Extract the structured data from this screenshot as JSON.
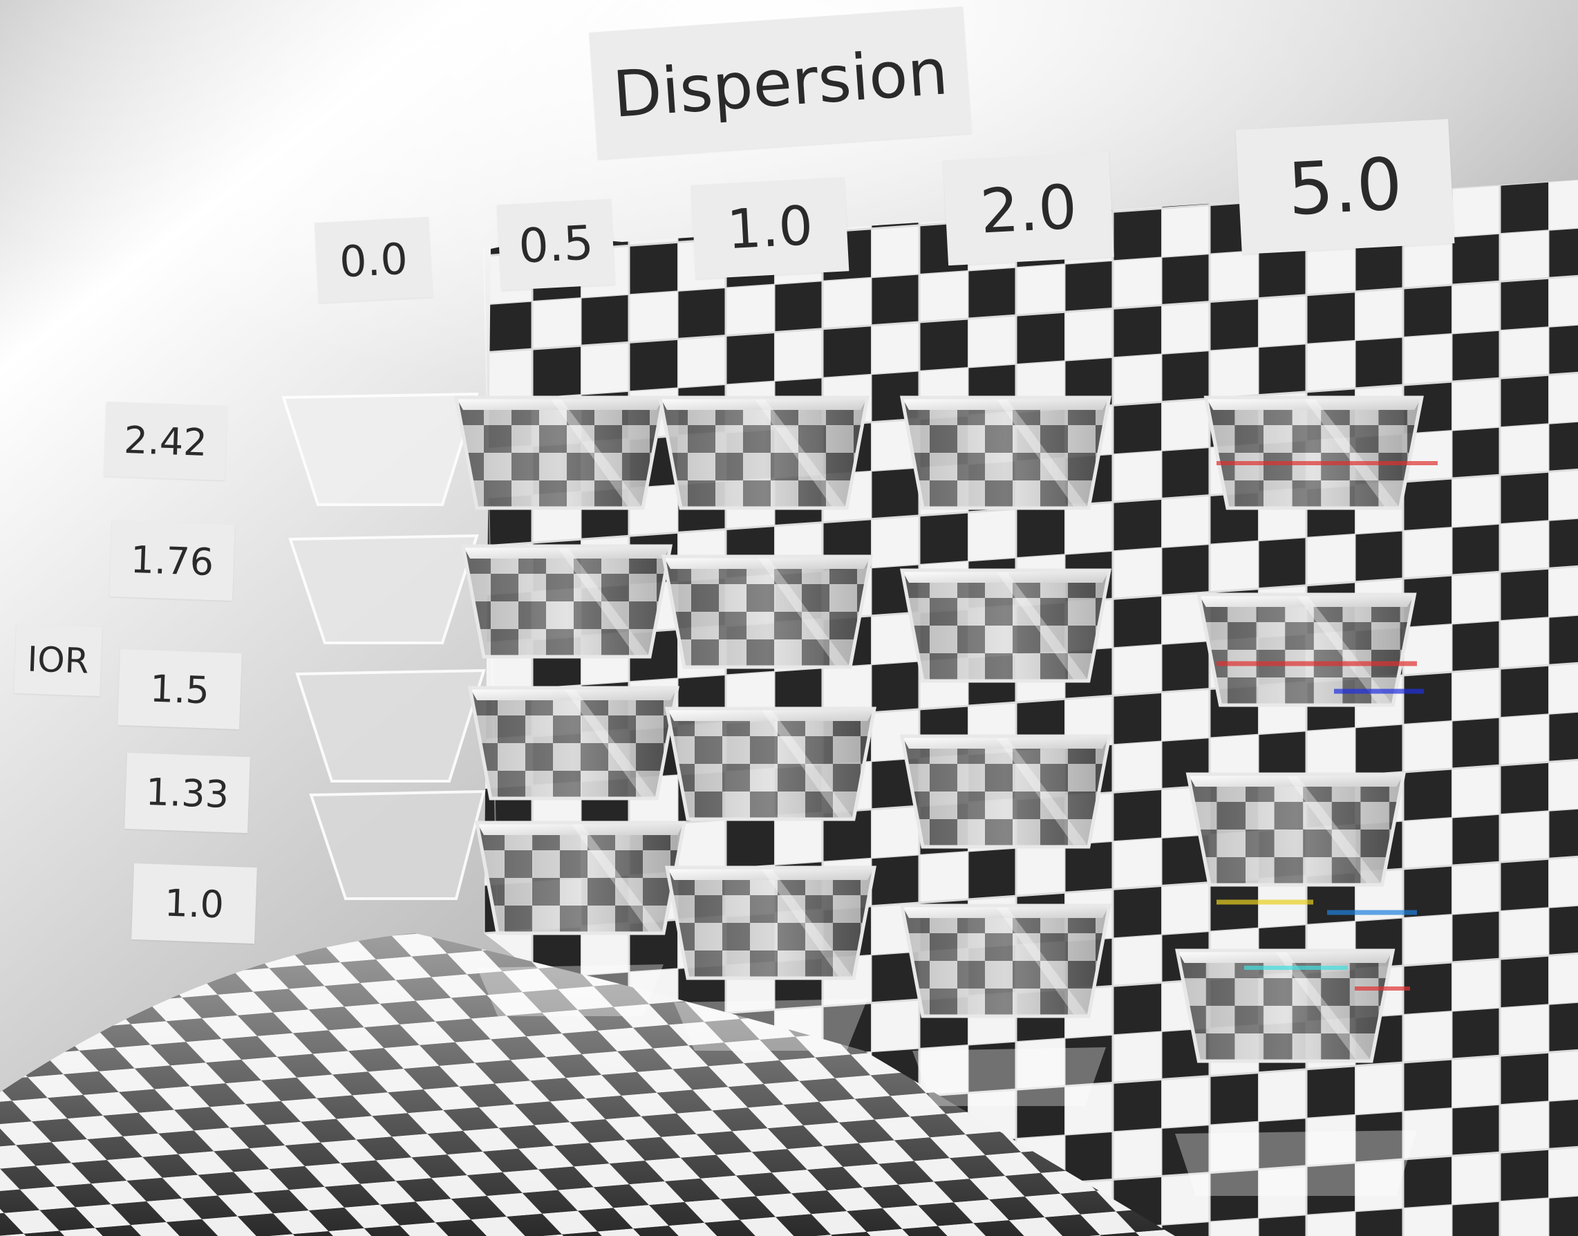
{
  "labels": {
    "title": "Dispersion",
    "axis": "IOR",
    "dispersion_values": [
      "0.0",
      "0.5",
      "1.0",
      "2.0",
      "5.0"
    ],
    "ior_values": [
      "2.42",
      "1.76",
      "1.5",
      "1.33",
      "1.0"
    ]
  }
}
